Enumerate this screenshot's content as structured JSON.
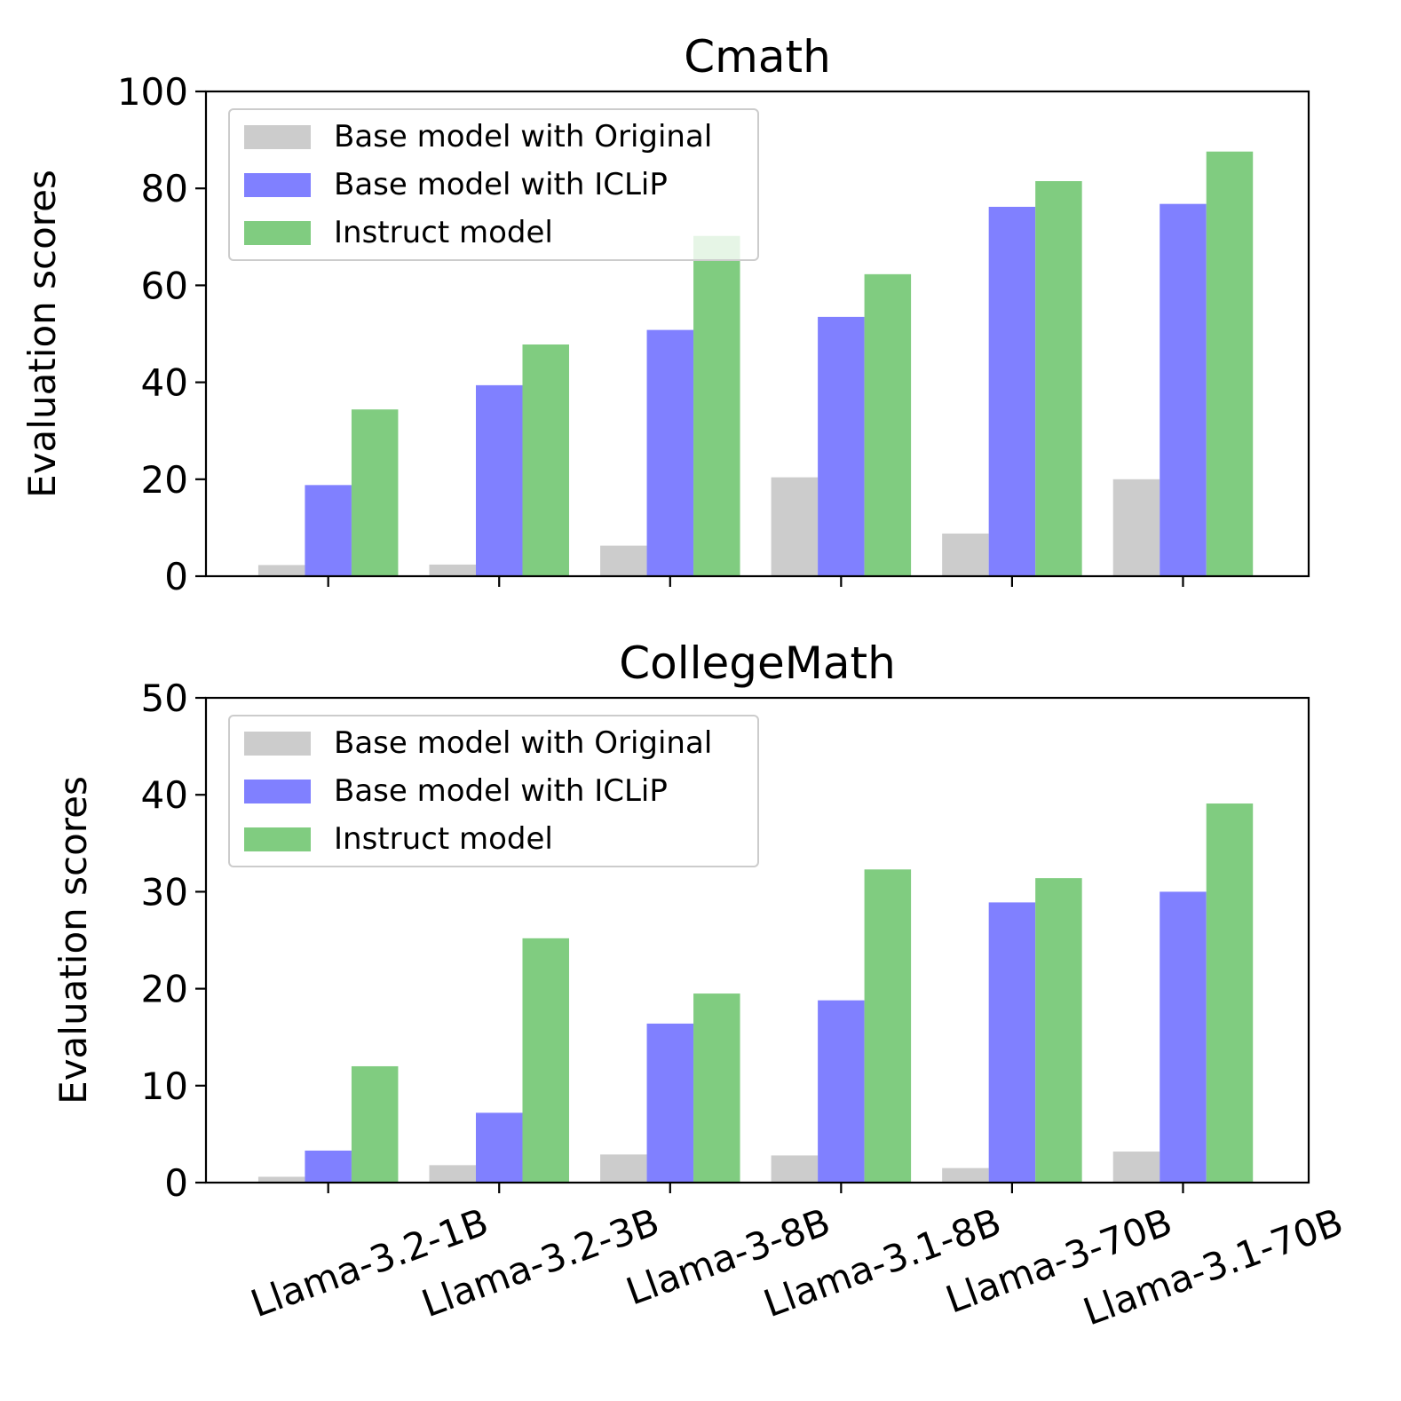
{
  "chart_data": [
    {
      "type": "bar",
      "title": "Cmath",
      "ylabel": "Evaluation scores",
      "xlabel": "",
      "ylim": [
        0,
        100
      ],
      "yticks": [
        0,
        20,
        40,
        60,
        80,
        100
      ],
      "categories": [
        "Llama-3.2-1B",
        "Llama-3.2-3B",
        "Llama-3-8B",
        "Llama-3.1-8B",
        "Llama-3-70B",
        "Llama-3.1-70B"
      ],
      "legend_position": "top-left",
      "series": [
        {
          "name": "Base model with Original",
          "color": "#cccccc",
          "values": [
            2.3,
            2.4,
            6.3,
            20.4,
            8.8,
            20.0
          ]
        },
        {
          "name": "Base model with ICLiP",
          "color": "#8080ff",
          "values": [
            18.8,
            39.4,
            50.8,
            53.5,
            76.2,
            76.8
          ]
        },
        {
          "name": "Instruct model",
          "color": "#80cc80",
          "values": [
            34.4,
            47.8,
            70.2,
            62.3,
            81.5,
            87.6
          ]
        }
      ]
    },
    {
      "type": "bar",
      "title": "CollegeMath",
      "ylabel": "Evaluation scores",
      "xlabel": "",
      "ylim": [
        0,
        50
      ],
      "yticks": [
        0,
        10,
        20,
        30,
        40,
        50
      ],
      "categories": [
        "Llama-3.2-1B",
        "Llama-3.2-3B",
        "Llama-3-8B",
        "Llama-3.1-8B",
        "Llama-3-70B",
        "Llama-3.1-70B"
      ],
      "legend_position": "top-left",
      "series": [
        {
          "name": "Base model with Original",
          "color": "#cccccc",
          "values": [
            0.6,
            1.8,
            2.9,
            2.8,
            1.5,
            3.2
          ]
        },
        {
          "name": "Base model with ICLiP",
          "color": "#8080ff",
          "values": [
            3.3,
            7.2,
            16.4,
            18.8,
            28.9,
            30.0
          ]
        },
        {
          "name": "Instruct model",
          "color": "#80cc80",
          "values": [
            12.0,
            25.2,
            19.5,
            32.3,
            31.4,
            39.1
          ]
        }
      ]
    }
  ]
}
